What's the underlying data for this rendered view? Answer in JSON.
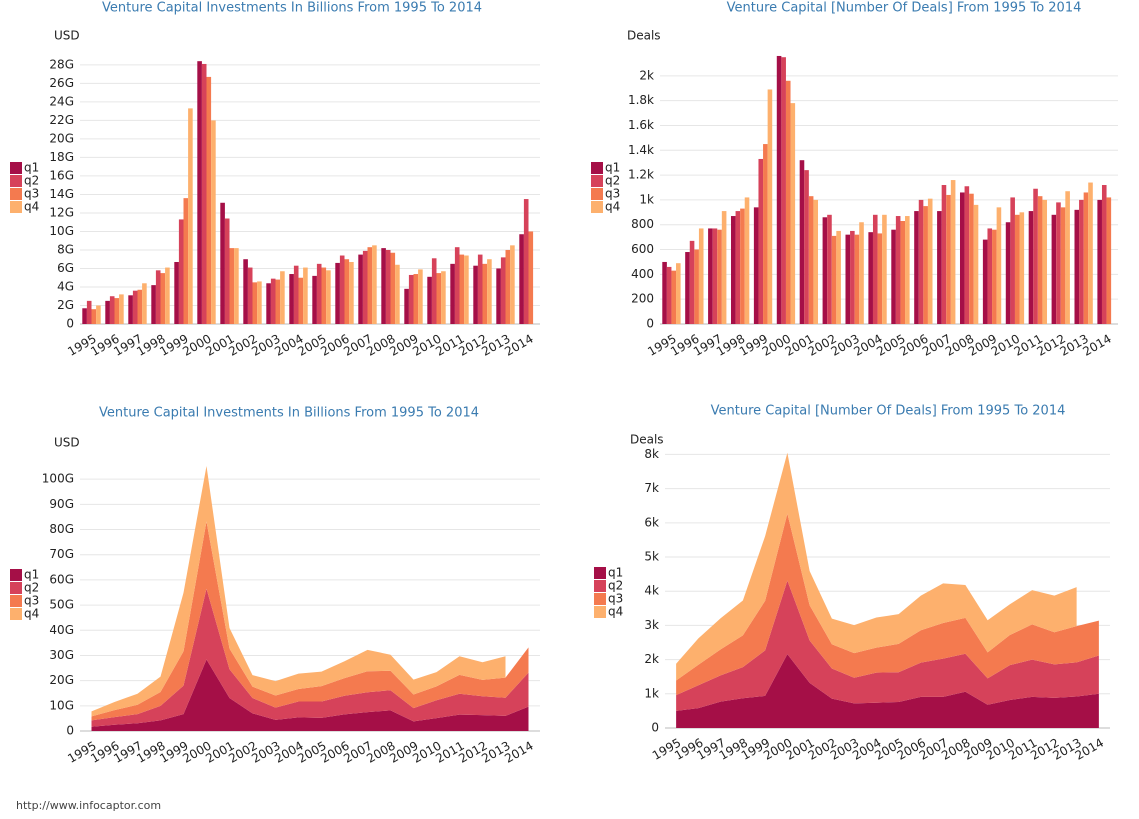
{
  "chart_data": [
    {
      "type": "bar",
      "title": "Venture Capital Investments In Billions From 1995 To 2014",
      "ylabel": "USD",
      "categories": [
        "1995",
        "1996",
        "1997",
        "1998",
        "1999",
        "2000",
        "2001",
        "2002",
        "2003",
        "2004",
        "2005",
        "2006",
        "2007",
        "2008",
        "2009",
        "2010",
        "2011",
        "2012",
        "2013",
        "2014"
      ],
      "series": [
        {
          "name": "q1",
          "color": "#a50f47",
          "values": [
            1.7,
            2.5,
            3.1,
            4.2,
            6.7,
            28.4,
            13.1,
            7.0,
            4.4,
            5.4,
            5.2,
            6.6,
            7.5,
            8.2,
            3.8,
            5.1,
            6.5,
            6.3,
            6.0,
            9.7
          ]
        },
        {
          "name": "q2",
          "color": "#d6425a",
          "values": [
            2.5,
            3.0,
            3.6,
            5.8,
            11.3,
            28.1,
            11.4,
            6.1,
            4.9,
            6.3,
            6.5,
            7.4,
            7.9,
            8.0,
            5.3,
            7.1,
            8.3,
            7.5,
            7.2,
            13.5
          ]
        },
        {
          "name": "q3",
          "color": "#f47a4f",
          "values": [
            1.6,
            2.8,
            3.7,
            5.5,
            13.6,
            26.7,
            8.2,
            4.5,
            4.8,
            5.0,
            6.1,
            7.0,
            8.3,
            7.7,
            5.4,
            5.5,
            7.5,
            6.5,
            8.0,
            10.0
          ]
        },
        {
          "name": "q4",
          "color": "#fdb06d",
          "values": [
            2.0,
            3.2,
            4.4,
            6.1,
            23.3,
            22.0,
            8.2,
            4.6,
            5.7,
            6.1,
            5.8,
            6.7,
            8.5,
            6.4,
            5.9,
            5.7,
            7.4,
            7.0,
            8.5,
            null
          ]
        }
      ],
      "ylim": [
        0,
        29.5
      ],
      "yticks": [
        0,
        {
          "value": 2,
          "label": "2G"
        },
        {
          "value": 4,
          "label": "4G"
        },
        {
          "value": 6,
          "label": "6G"
        },
        {
          "value": 8,
          "label": "8G"
        },
        {
          "value": 10,
          "label": "10G"
        },
        {
          "value": 12,
          "label": "12G"
        },
        {
          "value": 14,
          "label": "14G"
        },
        {
          "value": 16,
          "label": "16G"
        },
        {
          "value": 18,
          "label": "18G"
        },
        {
          "value": 20,
          "label": "20G"
        },
        {
          "value": 22,
          "label": "22G"
        },
        {
          "value": 24,
          "label": "24G"
        },
        {
          "value": 26,
          "label": "26G"
        },
        {
          "value": 28,
          "label": "28G"
        }
      ],
      "grid": true
    },
    {
      "type": "bar",
      "title": "Venture Capital [Number Of Deals] From 1995 To 2014",
      "ylabel": "Deals",
      "categories": [
        "1995",
        "1996",
        "1997",
        "1998",
        "1999",
        "2000",
        "2001",
        "2002",
        "2003",
        "2004",
        "2005",
        "2006",
        "2007",
        "2008",
        "2009",
        "2010",
        "2011",
        "2012",
        "2013",
        "2014"
      ],
      "series": [
        {
          "name": "q1",
          "color": "#a50f47",
          "values": [
            500,
            580,
            770,
            870,
            940,
            2160,
            1320,
            860,
            720,
            740,
            760,
            910,
            910,
            1060,
            680,
            820,
            910,
            880,
            920,
            1000
          ]
        },
        {
          "name": "q2",
          "color": "#d6425a",
          "values": [
            460,
            670,
            770,
            910,
            1330,
            2150,
            1240,
            880,
            750,
            880,
            870,
            1000,
            1120,
            1110,
            770,
            1020,
            1090,
            980,
            1000,
            1120
          ]
        },
        {
          "name": "q3",
          "color": "#f47a4f",
          "values": [
            430,
            600,
            760,
            930,
            1450,
            1960,
            1030,
            710,
            720,
            730,
            830,
            950,
            1040,
            1050,
            760,
            880,
            1030,
            940,
            1060,
            1020
          ]
        },
        {
          "name": "q4",
          "color": "#fdb06d",
          "values": [
            490,
            770,
            910,
            1020,
            1890,
            1780,
            1000,
            750,
            820,
            880,
            870,
            1010,
            1160,
            960,
            940,
            900,
            1000,
            1070,
            1140,
            null
          ]
        }
      ],
      "ylim": [
        0,
        2200
      ],
      "yticks": [
        0,
        200,
        400,
        600,
        800,
        {
          "value": 1000,
          "label": "1k"
        },
        {
          "value": 1200,
          "label": "1.2k"
        },
        {
          "value": 1400,
          "label": "1.4k"
        },
        {
          "value": 1600,
          "label": "1.6k"
        },
        {
          "value": 1800,
          "label": "1.8k"
        },
        {
          "value": 2000,
          "label": "2k"
        }
      ],
      "grid": true
    },
    {
      "type": "area",
      "title": "Venture Capital Investments In Billions From 1995 To 2014",
      "ylabel": "USD",
      "categories": [
        "1995",
        "1996",
        "1997",
        "1998",
        "1999",
        "2000",
        "2001",
        "2002",
        "2003",
        "2004",
        "2005",
        "2006",
        "2007",
        "2008",
        "2009",
        "2010",
        "2011",
        "2012",
        "2013",
        "2014"
      ],
      "series": [
        {
          "name": "q1",
          "color": "#a50f47",
          "values": [
            1.7,
            2.5,
            3.1,
            4.2,
            6.7,
            28.4,
            13.1,
            7.0,
            4.4,
            5.4,
            5.2,
            6.6,
            7.5,
            8.2,
            3.8,
            5.1,
            6.5,
            6.3,
            6.0,
            9.7
          ]
        },
        {
          "name": "q2",
          "color": "#d6425a",
          "values": [
            2.5,
            3.0,
            3.6,
            5.8,
            11.3,
            28.1,
            11.4,
            6.1,
            4.9,
            6.3,
            6.5,
            7.4,
            7.9,
            8.0,
            5.3,
            7.1,
            8.3,
            7.5,
            7.2,
            13.5
          ]
        },
        {
          "name": "q3",
          "color": "#f47a4f",
          "values": [
            1.6,
            2.8,
            3.7,
            5.5,
            13.6,
            26.7,
            8.2,
            4.5,
            4.8,
            5.0,
            6.1,
            7.0,
            8.3,
            7.7,
            5.4,
            5.5,
            7.5,
            6.5,
            8.0,
            10.0
          ]
        },
        {
          "name": "q4",
          "color": "#fdb06d",
          "values": [
            2.0,
            3.2,
            4.4,
            6.1,
            23.3,
            22.0,
            8.2,
            4.6,
            5.7,
            6.1,
            5.8,
            6.7,
            8.5,
            6.4,
            5.9,
            5.7,
            7.4,
            7.0,
            8.5,
            null
          ]
        }
      ],
      "ylim": [
        0,
        108
      ],
      "yticks": [
        0,
        {
          "value": 10,
          "label": "10G"
        },
        {
          "value": 20,
          "label": "20G"
        },
        {
          "value": 30,
          "label": "30G"
        },
        {
          "value": 40,
          "label": "40G"
        },
        {
          "value": 50,
          "label": "50G"
        },
        {
          "value": 60,
          "label": "60G"
        },
        {
          "value": 70,
          "label": "70G"
        },
        {
          "value": 80,
          "label": "80G"
        },
        {
          "value": 90,
          "label": "90G"
        },
        {
          "value": 100,
          "label": "100G"
        }
      ],
      "grid": true
    },
    {
      "type": "area",
      "title": "Venture Capital [Number Of Deals] From 1995 To 2014",
      "ylabel": "Deals",
      "categories": [
        "1995",
        "1996",
        "1997",
        "1998",
        "1999",
        "2000",
        "2001",
        "2002",
        "2003",
        "2004",
        "2005",
        "2006",
        "2007",
        "2008",
        "2009",
        "2010",
        "2011",
        "2012",
        "2013",
        "2014"
      ],
      "series": [
        {
          "name": "q1",
          "color": "#a50f47",
          "values": [
            500,
            580,
            770,
            870,
            940,
            2160,
            1320,
            860,
            720,
            740,
            760,
            910,
            910,
            1060,
            680,
            820,
            910,
            880,
            920,
            1000
          ]
        },
        {
          "name": "q2",
          "color": "#d6425a",
          "values": [
            460,
            670,
            770,
            910,
            1330,
            2150,
            1240,
            880,
            750,
            880,
            870,
            1000,
            1120,
            1110,
            770,
            1020,
            1090,
            980,
            1000,
            1120
          ]
        },
        {
          "name": "q3",
          "color": "#f47a4f",
          "values": [
            430,
            600,
            760,
            930,
            1450,
            1960,
            1030,
            710,
            720,
            730,
            830,
            950,
            1040,
            1050,
            760,
            880,
            1030,
            940,
            1060,
            1020
          ]
        },
        {
          "name": "q4",
          "color": "#fdb06d",
          "values": [
            490,
            770,
            910,
            1020,
            1890,
            1780,
            1000,
            750,
            820,
            880,
            870,
            1010,
            1160,
            960,
            940,
            900,
            1000,
            1070,
            1140,
            null
          ]
        }
      ],
      "ylim": [
        0,
        8100
      ],
      "yticks": [
        0,
        {
          "value": 1000,
          "label": "1k"
        },
        {
          "value": 2000,
          "label": "2k"
        },
        {
          "value": 3000,
          "label": "3k"
        },
        {
          "value": 4000,
          "label": "4k"
        },
        {
          "value": 5000,
          "label": "5k"
        },
        {
          "value": 6000,
          "label": "6k"
        },
        {
          "value": 7000,
          "label": "7k"
        },
        {
          "value": 8000,
          "label": "8k"
        }
      ],
      "grid": true
    }
  ],
  "footer": "http://www.infocaptor.com"
}
